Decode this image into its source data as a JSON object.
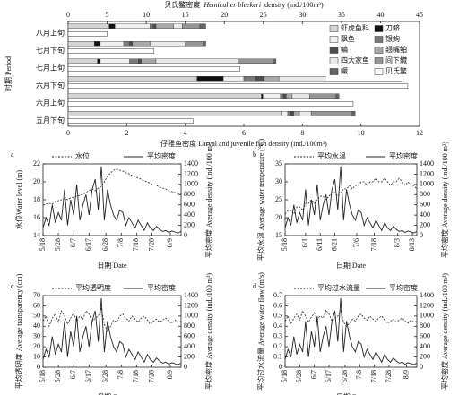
{
  "chart_data": [
    {
      "type": "bar",
      "orientation": "horizontal",
      "stacked": true,
      "categories": [
        "五月下旬",
        "六月上旬",
        "六月下旬",
        "七月上旬",
        "七月下旬",
        "八月上旬"
      ],
      "series": [
        {
          "name": "虾虎鱼科",
          "color": "#d4d4d4",
          "values": [
            7.3,
            6.6,
            4.4,
            1.0,
            0.9,
            1.4
          ]
        },
        {
          "name": "刀鲚",
          "color": "#111111",
          "values": [
            0,
            0.05,
            0.9,
            0.1,
            0.2,
            0.2
          ]
        },
        {
          "name": "飘鱼",
          "color": "#f0f0f0",
          "values": [
            0.2,
            0.6,
            0.7,
            1.0,
            0.8,
            1.2
          ]
        },
        {
          "name": "银鮈",
          "color": "#7a7a7a",
          "values": [
            0.1,
            0.1,
            0.4,
            0.3,
            0.2,
            0.1
          ]
        },
        {
          "name": "鳊",
          "color": "#4d4d4d",
          "values": [
            0.1,
            0.1,
            0.3,
            0.1,
            0.1,
            0.1
          ]
        },
        {
          "name": "翘嘴鲌",
          "color": "#a8a8a8",
          "values": [
            0.2,
            0.2,
            0.5,
            0.5,
            0.6,
            0.6
          ]
        },
        {
          "name": "四大家鱼",
          "color": "#e8e8e8",
          "values": [
            0.4,
            0.6,
            3.3,
            2.8,
            1.2,
            0.3
          ]
        },
        {
          "name": "间下鱵",
          "color": "#959595",
          "values": [
            1.4,
            0.9,
            0.8,
            1.2,
            0.6,
            0.6
          ]
        },
        {
          "name": "鳜",
          "color": "#666666",
          "values": [
            0.1,
            0.1,
            0.1,
            0.1,
            0.1,
            0.2
          ]
        },
        {
          "name": "贝氏鳘",
          "color": "#ffffff",
          "axis": "x2",
          "values": [
            16,
            36.5,
            43.5,
            22,
            11,
            5
          ]
        }
      ],
      "xlim": [
        0,
        12
      ],
      "xticks": [
        0,
        2,
        4,
        6,
        8,
        10,
        12
      ],
      "x2lim": [
        0,
        45
      ],
      "x2ticks": [
        0,
        5,
        10,
        15,
        20,
        25,
        30,
        35,
        40,
        45
      ],
      "xlabel": "仔稚鱼密度 Larval and juvenile fish density (ind./100m³)",
      "x2label": {
        "cn": "贝氏鳘密度",
        "species": "Hemiculter bleekeri",
        "unit": "density (ind./100m³)"
      },
      "ylabel": "时期 Period",
      "legend": "upper right"
    },
    {
      "type": "line",
      "label": "a",
      "x": [
        "5/18",
        "5/20",
        "5/22",
        "5/24",
        "5/26",
        "5/28",
        "5/30",
        "6/1",
        "6/3",
        "6/5",
        "6/7",
        "6/9",
        "6/11",
        "6/13",
        "6/15",
        "6/17",
        "6/19",
        "6/21",
        "6/23",
        "6/25",
        "6/27",
        "6/29",
        "7/1",
        "7/3",
        "7/5",
        "7/7",
        "7/9",
        "7/11",
        "7/13",
        "7/15",
        "7/17",
        "7/19",
        "7/21",
        "7/23",
        "7/25",
        "7/27",
        "7/29",
        "7/31",
        "8/2",
        "8/4",
        "8/6",
        "8/8",
        "8/10",
        "8/12",
        "8/14",
        "8/16"
      ],
      "series": [
        {
          "name": "水位",
          "color": "#222222",
          "dash": true,
          "values": [
            17.4,
            17.5,
            17.6,
            17.5,
            17.8,
            17.9,
            18.0,
            18.1,
            18.0,
            18.2,
            18.3,
            18.4,
            18.5,
            18.6,
            18.8,
            19.0,
            19.2,
            19.0,
            19.3,
            19.5,
            20.0,
            20.6,
            21.0,
            21.3,
            21.4,
            21.3,
            21.2,
            21.0,
            20.9,
            20.7,
            20.6,
            20.4,
            20.3,
            20.1,
            20.0,
            19.8,
            19.7,
            19.6,
            19.4,
            19.3,
            19.2,
            19.0,
            18.9,
            18.8,
            18.7,
            18.6
          ]
        },
        {
          "name": "平均密度",
          "color": "#222222",
          "axis": "y2",
          "values": [
            150,
            350,
            200,
            600,
            250,
            450,
            300,
            900,
            200,
            700,
            400,
            1000,
            300,
            600,
            800,
            400,
            900,
            1100,
            500,
            1350,
            300,
            900,
            600,
            400,
            300,
            500,
            450,
            200,
            350,
            250,
            150,
            300,
            200,
            100,
            250,
            150,
            100,
            180,
            120,
            80,
            100,
            60,
            90,
            70,
            50,
            80
          ]
        }
      ],
      "ylim": [
        14,
        22
      ],
      "yticks": [
        14,
        16,
        18,
        20,
        22
      ],
      "y2lim": [
        0,
        1400
      ],
      "y2ticks": [
        0,
        200,
        400,
        600,
        800,
        1000,
        1200,
        1400
      ],
      "xticks": [
        "5/18",
        "5/28",
        "6/7",
        "6/17",
        "6/28",
        "7/8",
        "7/18",
        "7/28",
        "8/9"
      ],
      "xlabel": "日期 Date",
      "ylabel": "水位Water level (m)",
      "y2label": "平均密度 Average density (ind./100 m³)"
    },
    {
      "type": "line",
      "label": "b",
      "x": [
        "5/18",
        "5/20",
        "5/22",
        "5/24",
        "5/26",
        "5/28",
        "5/30",
        "6/1",
        "6/3",
        "6/5",
        "6/7",
        "6/9",
        "6/11",
        "6/13",
        "6/15",
        "6/17",
        "6/19",
        "6/21",
        "6/23",
        "6/25",
        "6/27",
        "6/29",
        "7/1",
        "7/3",
        "7/5",
        "7/7",
        "7/9",
        "7/11",
        "7/13",
        "7/15",
        "7/17",
        "7/19",
        "7/21",
        "7/23",
        "7/25",
        "7/27",
        "7/29",
        "7/31",
        "8/2",
        "8/4",
        "8/6",
        "8/8",
        "8/10",
        "8/12",
        "8/14",
        "8/16"
      ],
      "series": [
        {
          "name": "平均水温",
          "color": "#222222",
          "dash": true,
          "values": [
            21,
            22,
            22,
            21,
            23,
            23,
            22,
            24,
            24,
            25,
            24,
            25,
            26,
            26,
            25,
            26,
            27,
            27,
            26,
            27,
            28,
            28,
            29,
            28,
            29,
            29,
            30,
            30,
            29,
            30,
            30,
            31,
            30,
            30,
            31,
            30,
            29,
            30,
            30,
            31,
            30,
            29,
            30,
            29,
            29,
            28
          ]
        },
        {
          "name": "平均密度",
          "color": "#222222",
          "axis": "y2",
          "values": [
            150,
            350,
            200,
            600,
            250,
            450,
            300,
            900,
            200,
            700,
            400,
            1000,
            300,
            600,
            800,
            400,
            900,
            1100,
            500,
            1350,
            300,
            900,
            600,
            400,
            300,
            500,
            450,
            200,
            350,
            250,
            150,
            300,
            200,
            100,
            250,
            150,
            100,
            180,
            120,
            80,
            100,
            60,
            90,
            70,
            50,
            80
          ]
        }
      ],
      "ylim": [
        15,
        35
      ],
      "yticks": [
        15,
        20,
        25,
        30,
        35
      ],
      "y2lim": [
        0,
        1400
      ],
      "y2ticks": [
        0,
        200,
        400,
        600,
        800,
        1000,
        1200,
        1400
      ],
      "xticks": [
        "5/18",
        "6/1",
        "6/11",
        "6/21",
        "7/6",
        "7/18",
        "8/3",
        "8/13"
      ],
      "xlabel": "日期 Date",
      "ylabel": "平均水温 Average water temperature (°C)",
      "y2label": "平均密度 Average density (ind./100 m³)"
    },
    {
      "type": "line",
      "label": "c",
      "x": [
        "5/18",
        "5/20",
        "5/22",
        "5/24",
        "5/26",
        "5/28",
        "5/30",
        "6/1",
        "6/3",
        "6/5",
        "6/7",
        "6/9",
        "6/11",
        "6/13",
        "6/15",
        "6/17",
        "6/19",
        "6/21",
        "6/23",
        "6/25",
        "6/27",
        "6/29",
        "7/1",
        "7/3",
        "7/5",
        "7/7",
        "7/9",
        "7/11",
        "7/13",
        "7/15",
        "7/17",
        "7/19",
        "7/21",
        "7/23",
        "7/25",
        "7/27",
        "7/29",
        "7/31",
        "8/2",
        "8/4",
        "8/6",
        "8/8",
        "8/10",
        "8/12",
        "8/14",
        "8/16"
      ],
      "series": [
        {
          "name": "平均透明度",
          "color": "#222222",
          "dash": true,
          "values": [
            45,
            50,
            40,
            48,
            52,
            44,
            55,
            50,
            42,
            48,
            53,
            45,
            50,
            47,
            55,
            52,
            44,
            48,
            50,
            58,
            42,
            35,
            40,
            46,
            44,
            50,
            52,
            48,
            45,
            50,
            47,
            44,
            48,
            50,
            46,
            42,
            45,
            47,
            44,
            46,
            48,
            45,
            43,
            46,
            44,
            45
          ]
        },
        {
          "name": "平均密度",
          "color": "#222222",
          "axis": "y2",
          "values": [
            150,
            350,
            200,
            600,
            250,
            450,
            300,
            900,
            200,
            700,
            400,
            1000,
            300,
            600,
            800,
            400,
            900,
            1100,
            500,
            1350,
            300,
            900,
            600,
            400,
            300,
            500,
            450,
            200,
            350,
            250,
            150,
            300,
            200,
            100,
            250,
            150,
            100,
            180,
            120,
            80,
            100,
            60,
            90,
            70,
            50,
            80
          ]
        }
      ],
      "ylim": [
        0,
        70
      ],
      "yticks": [
        0,
        10,
        20,
        30,
        40,
        50,
        60,
        70
      ],
      "y2lim": [
        0,
        1400
      ],
      "y2ticks": [
        0,
        200,
        400,
        600,
        800,
        1000,
        1200,
        1400
      ],
      "xticks": [
        "5/18",
        "5/28",
        "6/7",
        "6/17",
        "6/28",
        "7/8",
        "7/18",
        "7/28",
        "8/9"
      ],
      "xlabel": "日期 Date",
      "ylabel": "平均透明度 Average transparency (cm)",
      "y2label": "平均密度 Average density (ind./100 m³)"
    },
    {
      "type": "line",
      "label": "d",
      "x": [
        "5/18",
        "5/20",
        "5/22",
        "5/24",
        "5/26",
        "5/28",
        "5/30",
        "6/1",
        "6/3",
        "6/5",
        "6/7",
        "6/9",
        "6/11",
        "6/13",
        "6/15",
        "6/17",
        "6/19",
        "6/21",
        "6/23",
        "6/25",
        "6/27",
        "6/29",
        "7/1",
        "7/3",
        "7/5",
        "7/7",
        "7/9",
        "7/11",
        "7/13",
        "7/15",
        "7/17",
        "7/19",
        "7/21",
        "7/23",
        "7/25",
        "7/27",
        "7/29",
        "7/31",
        "8/2",
        "8/4",
        "8/6",
        "8/8",
        "8/10",
        "8/12",
        "8/14",
        "8/16"
      ],
      "series": [
        {
          "name": "平均过水流量",
          "color": "#222222",
          "dash": true,
          "values": [
            0.45,
            0.5,
            0.42,
            0.48,
            0.52,
            0.46,
            0.55,
            0.5,
            0.44,
            0.49,
            0.53,
            0.47,
            0.5,
            0.48,
            0.56,
            0.52,
            0.45,
            0.48,
            0.5,
            0.55,
            0.44,
            0.4,
            0.43,
            0.47,
            0.45,
            0.5,
            0.52,
            0.48,
            0.46,
            0.5,
            0.47,
            0.45,
            0.48,
            0.5,
            0.46,
            0.43,
            0.45,
            0.47,
            0.44,
            0.46,
            0.48,
            0.45,
            0.43,
            0.46,
            0.44,
            0.45
          ]
        },
        {
          "name": "平均密度",
          "color": "#222222",
          "axis": "y2",
          "values": [
            150,
            350,
            200,
            600,
            250,
            450,
            300,
            900,
            200,
            700,
            400,
            1000,
            300,
            600,
            800,
            400,
            900,
            1100,
            500,
            1350,
            300,
            900,
            600,
            400,
            300,
            500,
            450,
            200,
            350,
            250,
            150,
            300,
            200,
            100,
            250,
            150,
            100,
            180,
            120,
            80,
            100,
            60,
            90,
            70,
            50,
            80
          ]
        }
      ],
      "ylim": [
        0,
        0.7
      ],
      "yticks": [
        0,
        0.1,
        0.2,
        0.3,
        0.4,
        0.5,
        0.6,
        0.7
      ],
      "y2lim": [
        0,
        1400
      ],
      "y2ticks": [
        0,
        200,
        400,
        600,
        800,
        1000,
        1200,
        1400
      ],
      "xticks": [
        "5/18",
        "5/28",
        "6/7",
        "6/17",
        "6/28",
        "7/8",
        "7/18",
        "7/28",
        "8/9"
      ],
      "xlabel": "日期 Date",
      "ylabel": "平均过水流量 Average water flow (m/s)",
      "y2label": "平均密度 Average density (ind./100 m³)"
    }
  ]
}
